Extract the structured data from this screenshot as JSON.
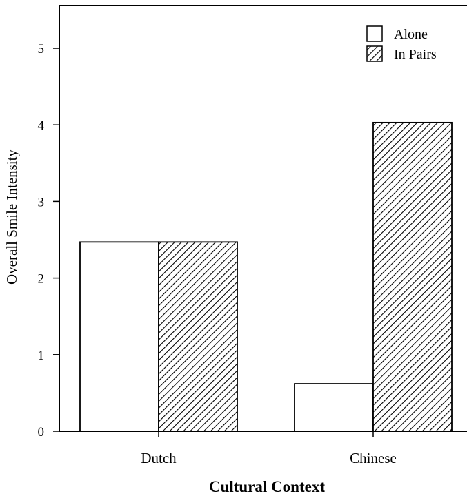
{
  "chart_data": {
    "type": "bar",
    "title": "",
    "xlabel": "Cultural Context",
    "ylabel": "Overall Smile Intensity",
    "categories": [
      "Dutch",
      "Chinese"
    ],
    "series": [
      {
        "name": "Alone",
        "values": [
          2.47,
          0.62
        ],
        "fill": "#ffffff",
        "pattern": "none"
      },
      {
        "name": "In Pairs",
        "values": [
          2.47,
          4.03
        ],
        "fill": "#ffffff",
        "pattern": "diagonal-hatch"
      }
    ],
    "ylim": [
      0,
      5.5
    ],
    "yticks": [
      0,
      1,
      2,
      3,
      4,
      5
    ],
    "grid": false,
    "legend_position": "top-right",
    "colors": {
      "axis": "#000000",
      "bar_edge": "#000000",
      "hatch": "#000000",
      "background": "#ffffff"
    }
  }
}
